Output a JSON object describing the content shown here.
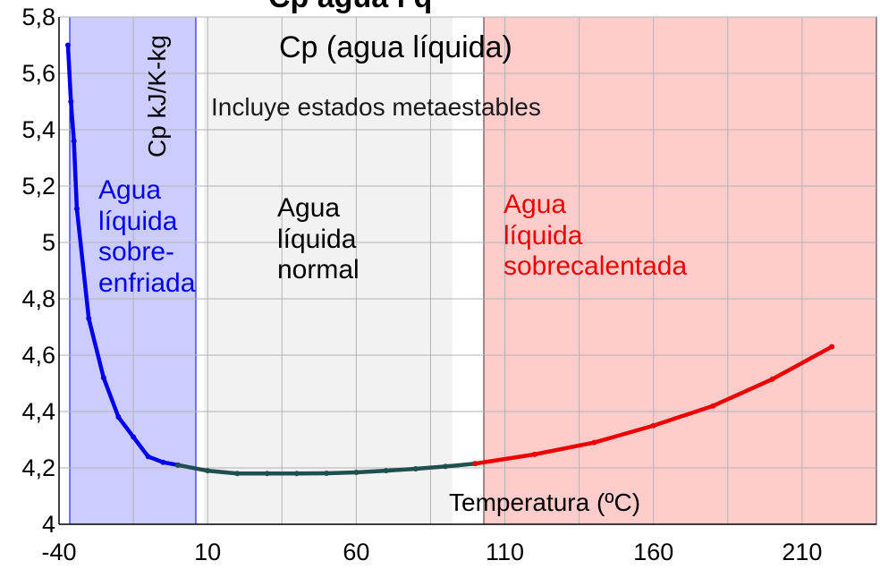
{
  "chart_data": {
    "type": "line",
    "title": "Cp (agua líquida)",
    "subtitle": "Incluye estados metaestables",
    "title_partial": "Cp     agua l  q",
    "xlabel": "Temperatura (ºC)",
    "ylabel": "Cp kJ/K-kg",
    "xlim": [
      -40,
      235
    ],
    "ylim": [
      4,
      5.8
    ],
    "x_ticks": [
      "-40",
      "10",
      "60",
      "110",
      "160",
      "210"
    ],
    "y_ticks": [
      "4",
      "4,2",
      "4,4",
      "4,6",
      "4,8",
      "5",
      "5,2",
      "5,4",
      "5,6",
      "5,8"
    ],
    "grid": true,
    "regions": [
      {
        "label": "Agua\nlíquida\nsobre-\nenfriada",
        "x_start": -40,
        "x_end": 0,
        "fill": "#ccccff",
        "text_color": "#0000ee"
      },
      {
        "label": "Agua\nlíquida\nnormal",
        "x_start": 0,
        "x_end": 100,
        "fill": "#f2f2f2",
        "text_color": "#000000"
      },
      {
        "label": "Agua\nlíquida\nsobrecalentada",
        "x_start": 100,
        "x_end": 235,
        "fill": "#ffcccc",
        "text_color": "#ee0000"
      }
    ],
    "series": [
      {
        "color": "#0000ee",
        "x": [
          -37,
          -36,
          -35,
          -34,
          -30,
          -25,
          -20,
          -15,
          -10,
          -5,
          0
        ],
        "y": [
          5.7,
          5.5,
          5.36,
          5.12,
          4.73,
          4.52,
          4.38,
          4.31,
          4.24,
          4.22,
          4.21
        ]
      },
      {
        "color": "#1f4f4f",
        "x": [
          0,
          10,
          20,
          30,
          40,
          50,
          60,
          70,
          80,
          90,
          100
        ],
        "y": [
          4.21,
          4.19,
          4.18,
          4.18,
          4.18,
          4.181,
          4.184,
          4.19,
          4.197,
          4.205,
          4.215
        ]
      },
      {
        "color": "#ee0000",
        "x": [
          100,
          120,
          140,
          160,
          180,
          200,
          220
        ],
        "y": [
          4.215,
          4.248,
          4.29,
          4.35,
          4.42,
          4.515,
          4.63
        ]
      }
    ]
  }
}
